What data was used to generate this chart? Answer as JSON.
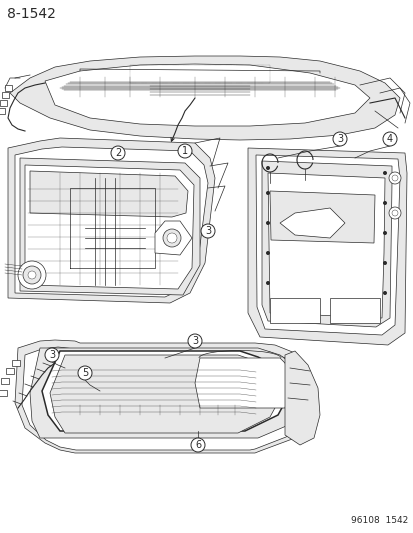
{
  "page_number": "8-1542",
  "footer_code": "96108  1542",
  "background_color": "#ffffff",
  "line_color": "#2a2a2a",
  "title_fontsize": 10,
  "callout_fontsize": 7,
  "footer_fontsize": 6.5,
  "fig_width": 4.14,
  "fig_height": 5.33,
  "dpi": 100,
  "gray_fill": "#d8d8d8",
  "light_gray": "#e8e8e8",
  "med_gray": "#b0b0b0"
}
